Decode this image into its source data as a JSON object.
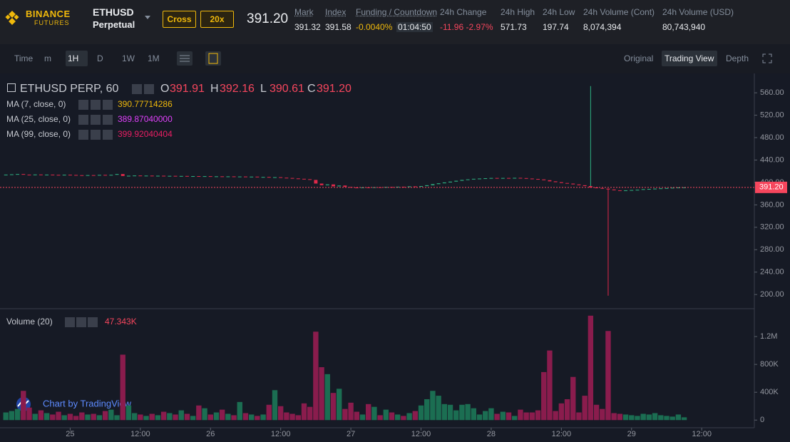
{
  "header": {
    "logo": [
      "BINANCE",
      "FUTURES"
    ],
    "symbol": "ETHUSD",
    "contract": "Perpetual",
    "margin": "Cross",
    "leverage": "20x",
    "price": "391.20",
    "stats": [
      {
        "label": "Mark",
        "value": "391.32"
      },
      {
        "label": "Index",
        "value": "391.58"
      },
      {
        "label": "Funding / Countdown",
        "value": "-0.0040%",
        "extra": "01:04:50"
      },
      {
        "label": "24h Change",
        "value": "-11.96 -2.97%"
      },
      {
        "label": "24h High",
        "value": "571.73"
      },
      {
        "label": "24h Low",
        "value": "197.74"
      },
      {
        "label": "24h Volume (Cont)",
        "value": "8,074,394"
      },
      {
        "label": "24h Volume (USD)",
        "value": "80,743,940"
      }
    ]
  },
  "toolbar": {
    "left": [
      "Time",
      "m",
      "1H",
      "D",
      "1W",
      "1M"
    ],
    "right": [
      "Original",
      "Trading View",
      "Depth"
    ]
  },
  "legend": {
    "title": "ETHUSD PERP, 60",
    "ohlc": [
      [
        "O",
        "391.91"
      ],
      [
        "H",
        "392.16"
      ],
      [
        "L",
        "390.61"
      ],
      [
        "C",
        "391.20"
      ]
    ],
    "ma": [
      {
        "name": "MA (7, close, 0)",
        "value": "390.77714286",
        "color": "#f0b90b"
      },
      {
        "name": "MA (25, close, 0)",
        "value": "389.87040000",
        "color": "#e040fb"
      },
      {
        "name": "MA (99, close, 0)",
        "value": "399.92040404",
        "color": "#e91e63"
      }
    ],
    "volume": "Volume (20)",
    "volume_value": "47.343K",
    "credit": "Chart by TradingView"
  },
  "chart_data": {
    "type": "candlestick",
    "up_color": "#2fb283",
    "down_color": "#e0294a",
    "volume_up_color": "#1b6e52",
    "volume_down_color": "#8a1c4d",
    "xlim": [
      -12,
      117
    ],
    "xticks": [
      {
        "value": 0,
        "label": "25"
      },
      {
        "value": 12,
        "label": "12:00"
      },
      {
        "value": 24,
        "label": "26"
      },
      {
        "value": 36,
        "label": "12:00"
      },
      {
        "value": 48,
        "label": "27"
      },
      {
        "value": 60,
        "label": "12:00"
      },
      {
        "value": 72,
        "label": "28"
      },
      {
        "value": 84,
        "label": "12:00"
      },
      {
        "value": 96,
        "label": "29"
      },
      {
        "value": 108,
        "label": "12:00"
      }
    ],
    "ylim": [
      176,
      592
    ],
    "yticks": [
      {
        "value": 200,
        "label": "200.00"
      },
      {
        "value": 240,
        "label": "240.00"
      },
      {
        "value": 280,
        "label": "280.00"
      },
      {
        "value": 320,
        "label": "320.00"
      },
      {
        "value": 360,
        "label": "360.00"
      },
      {
        "value": 400,
        "label": "400.00"
      },
      {
        "value": 440,
        "label": "440.00"
      },
      {
        "value": 480,
        "label": "480.00"
      },
      {
        "value": 520,
        "label": "520.00"
      },
      {
        "value": 560,
        "label": "560.00"
      }
    ],
    "volume_ylim": [
      -110000,
      1580000
    ],
    "volume_ticks": [
      {
        "value": 0,
        "label": "0"
      },
      {
        "value": 400000,
        "label": "400K"
      },
      {
        "value": 800000,
        "label": "800K"
      },
      {
        "value": 1200000,
        "label": "1.2M"
      }
    ],
    "last_price": {
      "value": 391.2,
      "label": "391.20"
    },
    "x": [
      -11,
      -10,
      -9,
      -8,
      -7,
      -6,
      -5,
      -4,
      -3,
      -2,
      -1,
      0,
      1,
      2,
      3,
      4,
      5,
      6,
      7,
      8,
      9,
      10,
      11,
      12,
      13,
      14,
      15,
      16,
      17,
      18,
      19,
      20,
      21,
      22,
      23,
      24,
      25,
      26,
      27,
      28,
      29,
      30,
      31,
      32,
      33,
      34,
      35,
      36,
      37,
      38,
      39,
      40,
      41,
      42,
      43,
      44,
      45,
      46,
      47,
      48,
      49,
      50,
      51,
      52,
      53,
      54,
      55,
      56,
      57,
      58,
      59,
      60,
      61,
      62,
      63,
      64,
      65,
      66,
      67,
      68,
      69,
      70,
      71,
      72,
      73,
      74,
      75,
      76,
      77,
      78,
      79,
      80,
      81,
      82,
      83,
      84,
      85,
      86,
      87,
      88,
      89,
      90,
      91,
      92,
      93,
      94,
      95,
      96,
      97,
      98,
      99,
      100,
      101,
      102,
      103,
      104,
      105
    ],
    "close": [
      414,
      414.5,
      415,
      414,
      413.8,
      414.2,
      413.5,
      414,
      413.6,
      413.2,
      413.8,
      413.4,
      413,
      412.6,
      413.1,
      412.8,
      413.5,
      412.9,
      413.6,
      415,
      411.5,
      412,
      412.4,
      411.8,
      412.2,
      411.6,
      412,
      411.5,
      411.8,
      411.2,
      411.6,
      411,
      411.3,
      410.8,
      411.2,
      410.6,
      410.9,
      410.4,
      410.8,
      410.2,
      410.6,
      410,
      410.4,
      409.6,
      409.8,
      409,
      409.4,
      408.5,
      408,
      407.2,
      406.5,
      405.8,
      404.5,
      398,
      395,
      396.5,
      393,
      394.5,
      392,
      391,
      390.5,
      391.2,
      390.8,
      391.5,
      391,
      392,
      391.6,
      392.4,
      392,
      393,
      392.6,
      393.5,
      395,
      397,
      398.5,
      400,
      401.5,
      403,
      404.5,
      405.5,
      406.5,
      407,
      407.5,
      408,
      407.5,
      408,
      407.6,
      408.2,
      407.8,
      407,
      406.2,
      405.4,
      404,
      402,
      400.5,
      399,
      398,
      396.5,
      395,
      393.5,
      391,
      390,
      389,
      387.5,
      386,
      385.5,
      386,
      386.5,
      387,
      388,
      388.5,
      389,
      389.5,
      390,
      390.6,
      391,
      391.2
    ],
    "volume": [
      110000,
      130000,
      160000,
      420000,
      180000,
      90000,
      140000,
      100000,
      80000,
      120000,
      70000,
      90000,
      60000,
      110000,
      80000,
      90000,
      70000,
      130000,
      150000,
      70000,
      940000,
      210000,
      100000,
      80000,
      60000,
      90000,
      70000,
      120000,
      100000,
      80000,
      140000,
      90000,
      60000,
      210000,
      170000,
      80000,
      110000,
      150000,
      90000,
      70000,
      260000,
      100000,
      80000,
      60000,
      80000,
      220000,
      430000,
      200000,
      110000,
      90000,
      70000,
      240000,
      190000,
      1270000,
      760000,
      660000,
      390000,
      450000,
      160000,
      250000,
      120000,
      80000,
      230000,
      190000,
      70000,
      150000,
      110000,
      80000,
      60000,
      100000,
      130000,
      210000,
      300000,
      420000,
      350000,
      230000,
      220000,
      140000,
      220000,
      230000,
      170000,
      80000,
      130000,
      170000,
      90000,
      120000,
      110000,
      60000,
      150000,
      110000,
      110000,
      140000,
      690000,
      1000000,
      130000,
      240000,
      300000,
      620000,
      110000,
      350000,
      1500000,
      220000,
      160000,
      1280000,
      100000,
      90000,
      80000,
      70000,
      60000,
      90000,
      80000,
      100000,
      70000,
      60000,
      50000,
      80000,
      40000
    ],
    "wicks": [
      {
        "x": 89,
        "high": 572
      },
      {
        "x": 92,
        "low": 198
      }
    ]
  }
}
